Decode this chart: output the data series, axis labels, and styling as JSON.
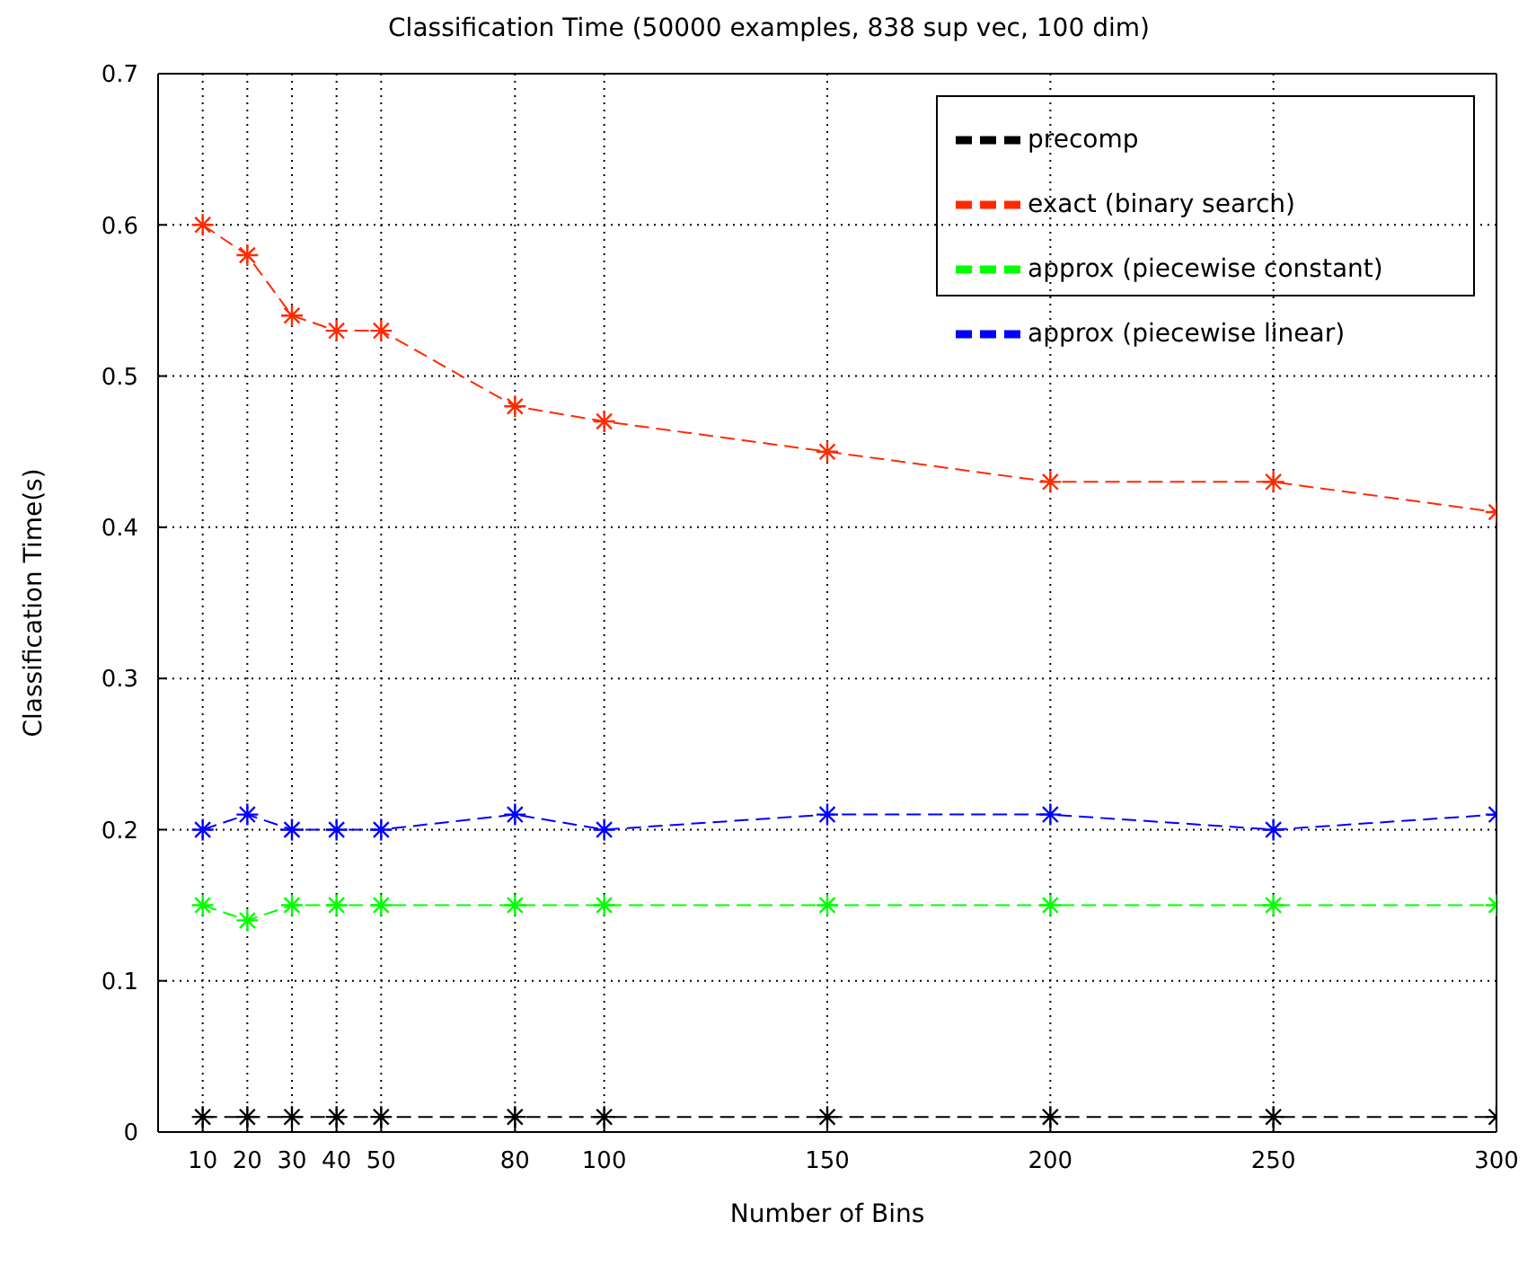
{
  "chart_data": {
    "type": "line",
    "title": "Classification Time (50000 examples, 838 sup vec, 100 dim)",
    "xlabel": "Number of Bins",
    "ylabel": "Classification Time(s)",
    "x": [
      10,
      20,
      30,
      40,
      50,
      80,
      100,
      150,
      200,
      250,
      300
    ],
    "series": [
      {
        "name": "precomp",
        "color": "#000000",
        "values": [
          0.01,
          0.01,
          0.01,
          0.01,
          0.01,
          0.01,
          0.01,
          0.01,
          0.01,
          0.01,
          0.01
        ]
      },
      {
        "name": "exact (binary search)",
        "color": "#ff2a00",
        "values": [
          0.6,
          0.58,
          0.54,
          0.53,
          0.53,
          0.48,
          0.47,
          0.45,
          0.43,
          0.43,
          0.41
        ]
      },
      {
        "name": "approx (piecewise constant)",
        "color": "#00ff00",
        "values": [
          0.15,
          0.14,
          0.15,
          0.15,
          0.15,
          0.15,
          0.15,
          0.15,
          0.15,
          0.15,
          0.15
        ]
      },
      {
        "name": "approx (piecewise linear)",
        "color": "#0000ff",
        "values": [
          0.2,
          0.21,
          0.2,
          0.2,
          0.2,
          0.21,
          0.2,
          0.21,
          0.21,
          0.2,
          0.21
        ]
      }
    ],
    "xlim": [
      0,
      300
    ],
    "xticks": [
      10,
      20,
      30,
      40,
      50,
      80,
      100,
      150,
      200,
      250,
      300
    ],
    "ylim": [
      0,
      0.7
    ],
    "yticks": [
      0,
      0.1,
      0.2,
      0.3,
      0.4,
      0.5,
      0.6,
      0.7
    ],
    "grid": true,
    "legend": "top right",
    "marker": "cross",
    "line_style": "dashed"
  }
}
